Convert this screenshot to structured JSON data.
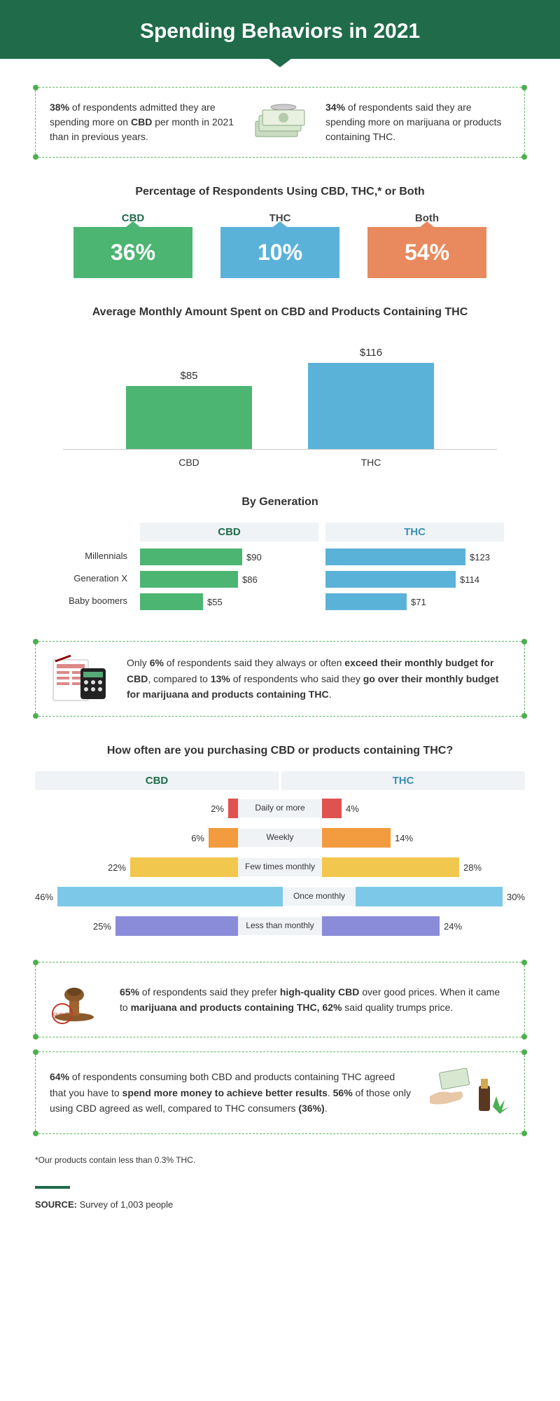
{
  "title": "Spending Behaviors in 2021",
  "colors": {
    "header_bg": "#1f6b4a",
    "green": "#4cb572",
    "green_dark": "#3a9e5e",
    "blue": "#5bb2d9",
    "blue_dark": "#4a9fc7",
    "orange": "#e88a5e",
    "orange_dark": "#d87748",
    "red": "#e0524f",
    "yellow": "#f2c74e",
    "lightblue": "#7cc8e8",
    "purple": "#8b8cd9",
    "orange_bar": "#f29b3f",
    "box_bg": "#eff3f5"
  },
  "top_stats": {
    "left_pct": "38%",
    "left_text": " of respondents admitted they are spending more on ",
    "left_bold": "CBD",
    "left_end": " per month in 2021 than in previous years.",
    "right_pct": "34%",
    "right_text": " of respondents said they are spending more on marijuana or products containing THC."
  },
  "usage": {
    "title": "Percentage of Respondents Using CBD, THC,* or Both",
    "items": [
      {
        "label": "CBD",
        "value": "36%",
        "color": "#4cb572",
        "label_color": "#1f6b4a"
      },
      {
        "label": "THC",
        "value": "10%",
        "color": "#5bb2d9",
        "label_color": "#444"
      },
      {
        "label": "Both",
        "value": "54%",
        "color": "#e88a5e",
        "label_color": "#444"
      }
    ]
  },
  "avg_spend": {
    "title": "Average Monthly Amount Spent on CBD and Products Containing THC",
    "bars": [
      {
        "label": "CBD",
        "value": "$85",
        "height": 90,
        "color": "#4cb572"
      },
      {
        "label": "THC",
        "value": "$116",
        "height": 123,
        "color": "#5bb2d9"
      }
    ]
  },
  "by_gen": {
    "title": "By Generation",
    "rows": [
      "Millennials",
      "Generation X",
      "Baby boomers"
    ],
    "cbd": {
      "label": "CBD",
      "color": "#4cb572",
      "values": [
        "$90",
        "$86",
        "$55"
      ],
      "widths": [
        146,
        140,
        90
      ],
      "label_color": "#1f6b4a"
    },
    "thc": {
      "label": "THC",
      "color": "#5bb2d9",
      "values": [
        "$123",
        "$114",
        "$71"
      ],
      "widths": [
        200,
        186,
        116
      ],
      "label_color": "#3a8fb5"
    }
  },
  "budget": {
    "p1a": "Only ",
    "p1b": "6%",
    "p1c": " of respondents said they always or often ",
    "p1d": "exceed their monthly budget for CBD",
    "p1e": ", compared to ",
    "p1f": "13%",
    "p1g": " of respondents who said they ",
    "p1h": "go over their monthly budget for marijuana and products containing THC",
    "p1i": "."
  },
  "frequency": {
    "title": "How often are you purchasing CBD or products containing THC?",
    "head_left": "CBD",
    "head_right": "THC",
    "rows": [
      {
        "label": "Daily or more",
        "left_val": "2%",
        "left_w": 14,
        "right_val": "4%",
        "right_w": 28,
        "color": "#e0524f"
      },
      {
        "label": "Weekly",
        "left_val": "6%",
        "left_w": 42,
        "right_val": "14%",
        "right_w": 98,
        "color": "#f29b3f"
      },
      {
        "label": "Few times monthly",
        "left_val": "22%",
        "left_w": 154,
        "right_val": "28%",
        "right_w": 196,
        "color": "#f2c74e"
      },
      {
        "label": "Once monthly",
        "left_val": "46%",
        "left_w": 322,
        "right_val": "30%",
        "right_w": 210,
        "color": "#7cc8e8"
      },
      {
        "label": "Less than monthly",
        "left_val": "25%",
        "left_w": 175,
        "right_val": "24%",
        "right_w": 168,
        "color": "#8b8cd9"
      }
    ]
  },
  "quality": {
    "a": "65%",
    "b": " of respondents said they prefer ",
    "c": "high-quality CBD",
    "d": " over good prices. When it came to ",
    "e": "marijuana and products containing THC, 62%",
    "f": " said quality trumps price."
  },
  "results": {
    "a": "64%",
    "b": " of respondents consuming both CBD and products containing THC agreed that you have to ",
    "c": "spend more money to achieve better results",
    "d": ". ",
    "e": "56%",
    "f": " of those only using CBD agreed as well, compared to THC consumers ",
    "g": "(36%)",
    "h": "."
  },
  "footnote": "*Our products contain less than 0.3% THC.",
  "source_label": "SOURCE: ",
  "source_text": "Survey of 1,003 people"
}
